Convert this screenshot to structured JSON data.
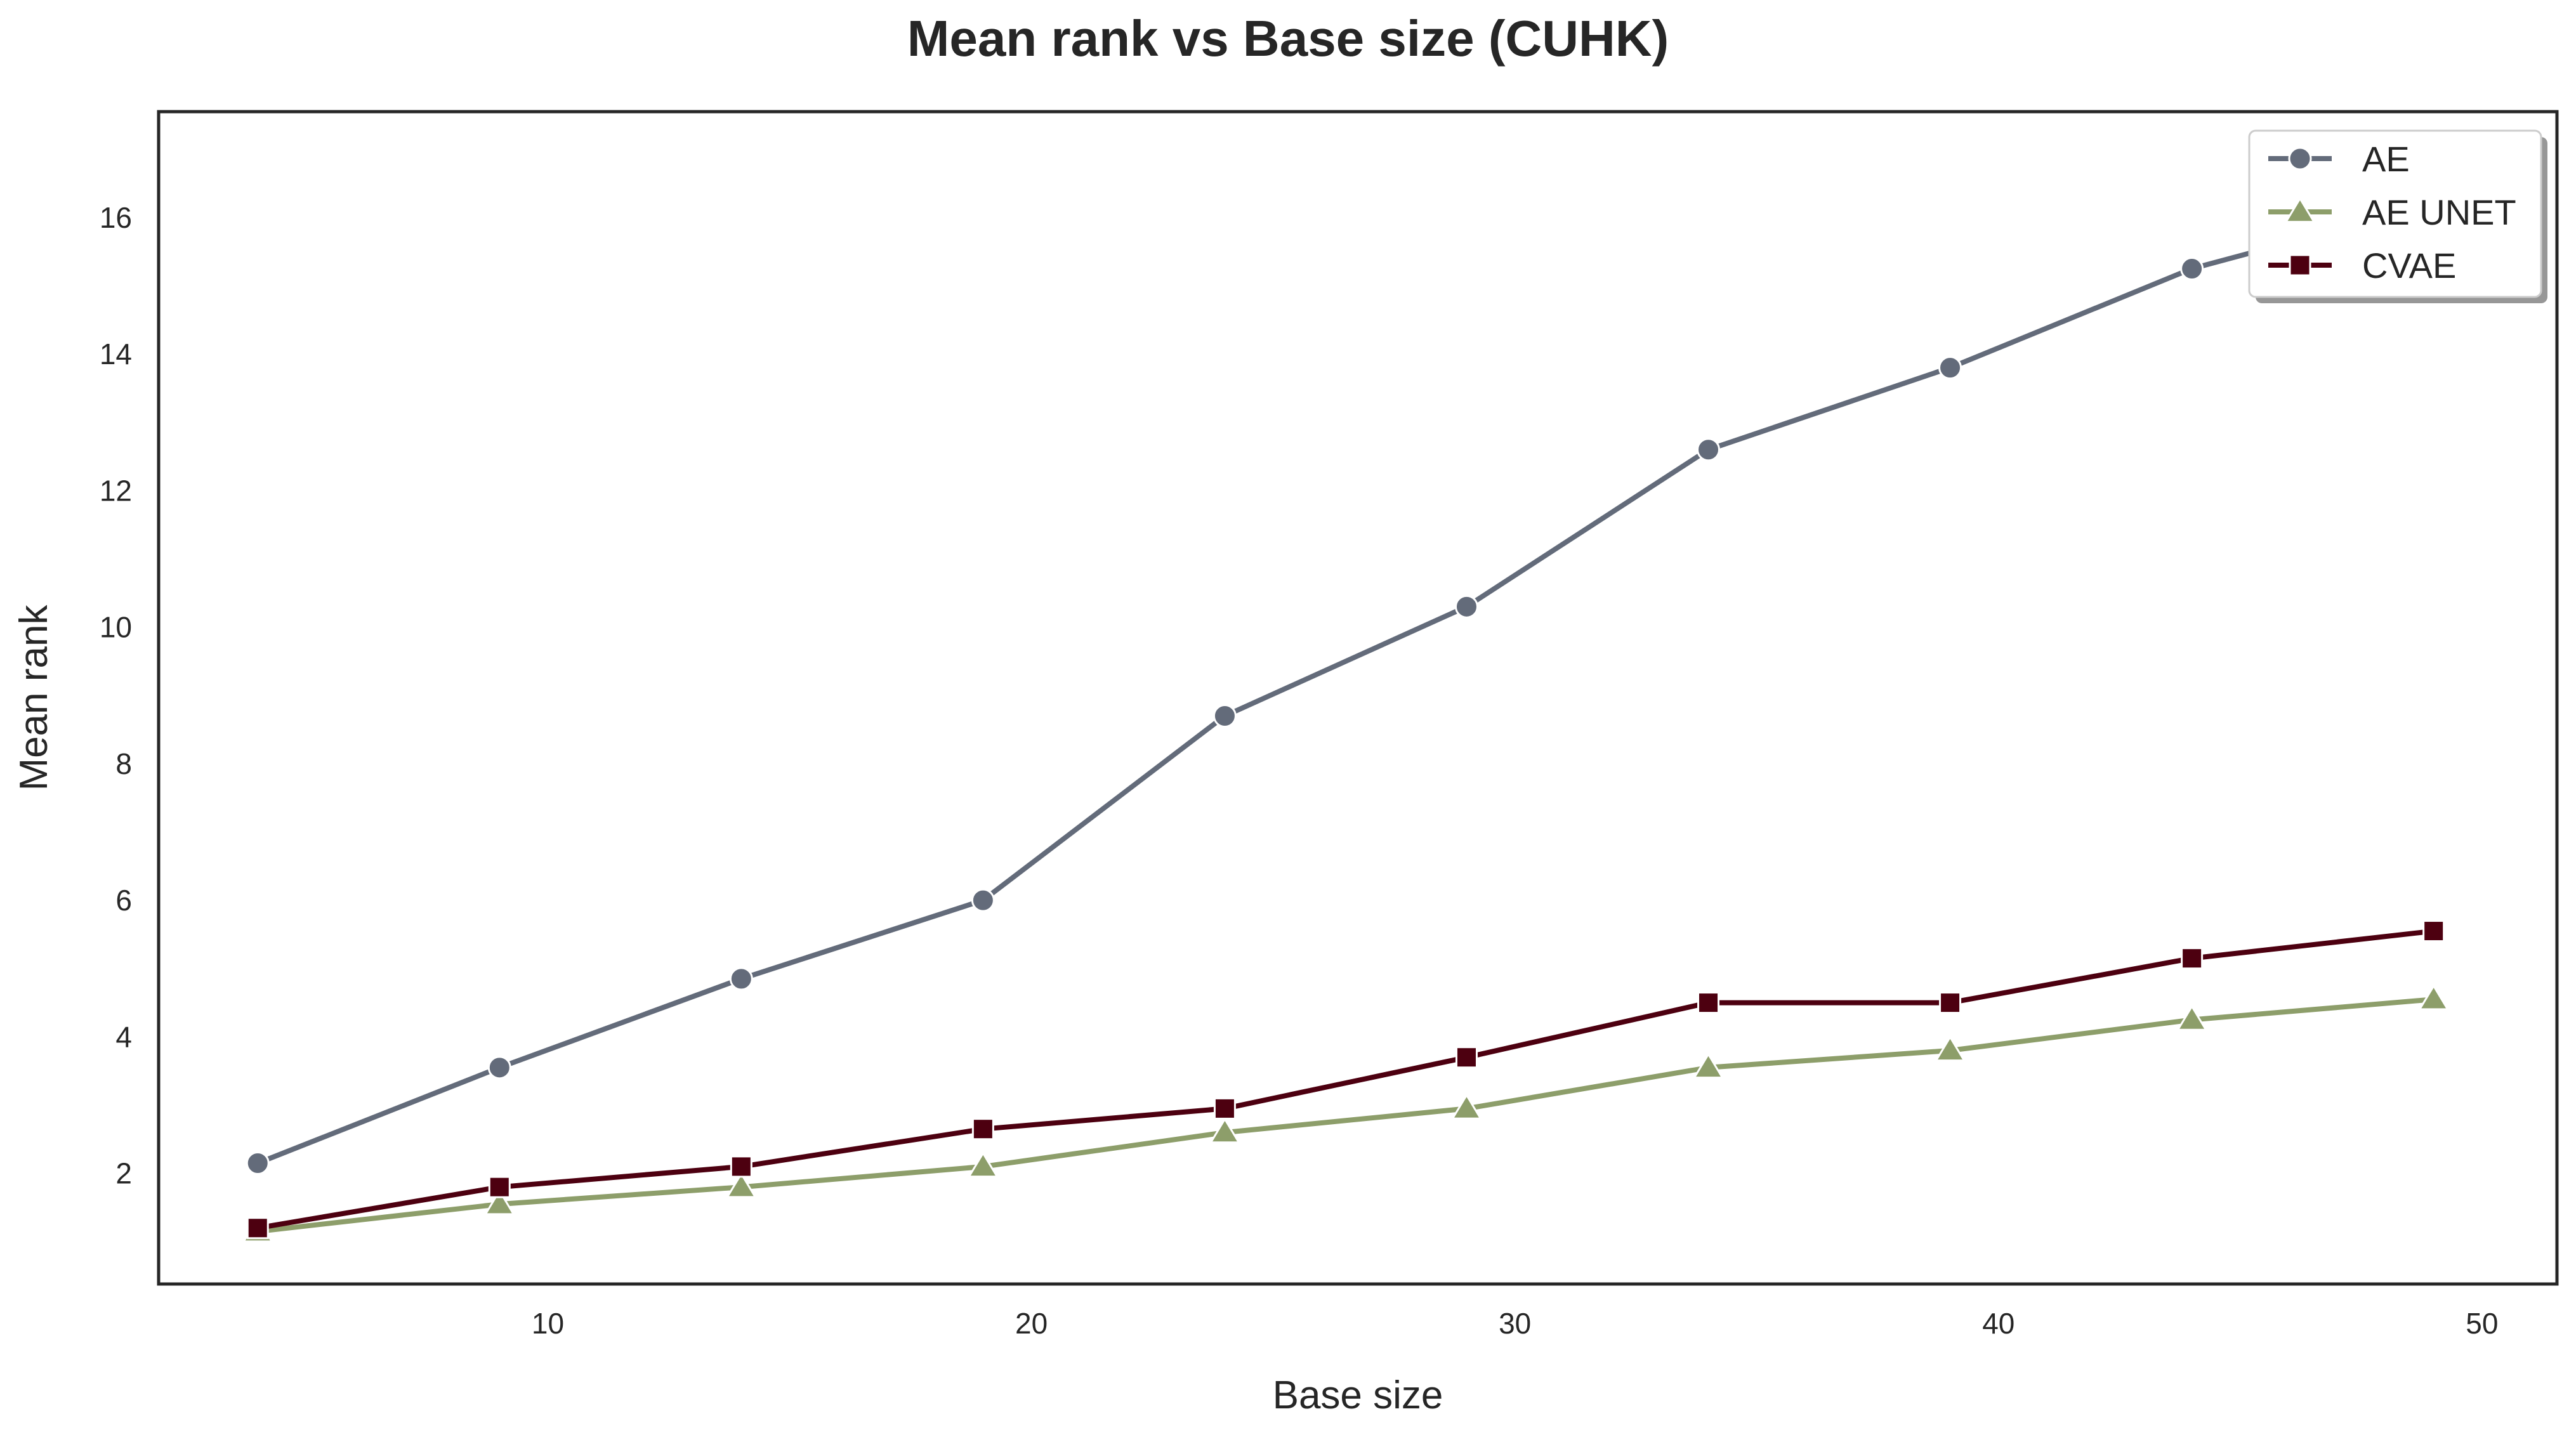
{
  "chart_data": {
    "type": "line",
    "title": "Mean rank vs Base size (CUHK)",
    "xlabel": "Base size",
    "ylabel": "Mean rank",
    "x": [
      4,
      9,
      14,
      19,
      24,
      29,
      34,
      39,
      44,
      49
    ],
    "xlim": [
      1.95,
      51.55
    ],
    "ylim": [
      0.38,
      17.55
    ],
    "xticks": [
      10,
      20,
      30,
      40,
      50
    ],
    "yticks": [
      2,
      4,
      6,
      8,
      10,
      12,
      14,
      16
    ],
    "grid": false,
    "legend_position": "upper right",
    "series": [
      {
        "name": "AE",
        "marker": "circle",
        "color": "#636b7a",
        "values": [
          2.15,
          3.55,
          4.85,
          6.0,
          8.7,
          10.3,
          12.6,
          13.8,
          15.25,
          16.2
        ]
      },
      {
        "name": "AE UNET",
        "marker": "triangle",
        "color": "#8d9e6a",
        "values": [
          1.15,
          1.55,
          1.8,
          2.1,
          2.6,
          2.95,
          3.55,
          3.8,
          4.25,
          4.55
        ]
      },
      {
        "name": "CVAE",
        "marker": "square",
        "color": "#4d0010",
        "values": [
          1.2,
          1.8,
          2.1,
          2.65,
          2.95,
          3.7,
          4.5,
          4.5,
          5.15,
          5.55
        ]
      }
    ]
  }
}
